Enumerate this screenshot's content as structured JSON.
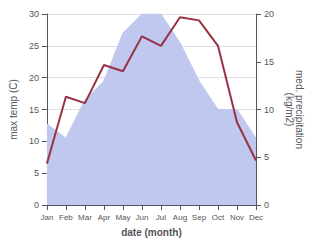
{
  "chart_data": {
    "type": "line",
    "xlabel": "date (month)",
    "ylabel": "max temp (C)",
    "y2label": "med. precipitation\n(kg/m2)",
    "categories": [
      "Jan",
      "Feb",
      "Mar",
      "Apr",
      "May",
      "Jun",
      "Jul",
      "Aug",
      "Sep",
      "Oct",
      "Nov",
      "Dec"
    ],
    "series": [
      {
        "type": "area",
        "axis": "y2",
        "color": "#c0c8f0",
        "values": [
          8.5,
          7.0,
          11.0,
          13.0,
          18.0,
          20.0,
          20.0,
          17.0,
          13.0,
          10.0,
          10.0,
          7.0
        ]
      },
      {
        "type": "line",
        "axis": "y",
        "color": "#993344",
        "values": [
          6.5,
          17.0,
          16.0,
          22.0,
          21.0,
          26.5,
          25.0,
          29.5,
          29.0,
          25.0,
          13.0,
          7.0
        ]
      }
    ],
    "ylim": [
      0,
      30
    ],
    "yticks": [
      0,
      5,
      10,
      15,
      20,
      25,
      30
    ],
    "y2lim": [
      0,
      20
    ],
    "y2ticks": [
      0,
      5,
      10,
      15,
      20
    ],
    "grid": true
  }
}
